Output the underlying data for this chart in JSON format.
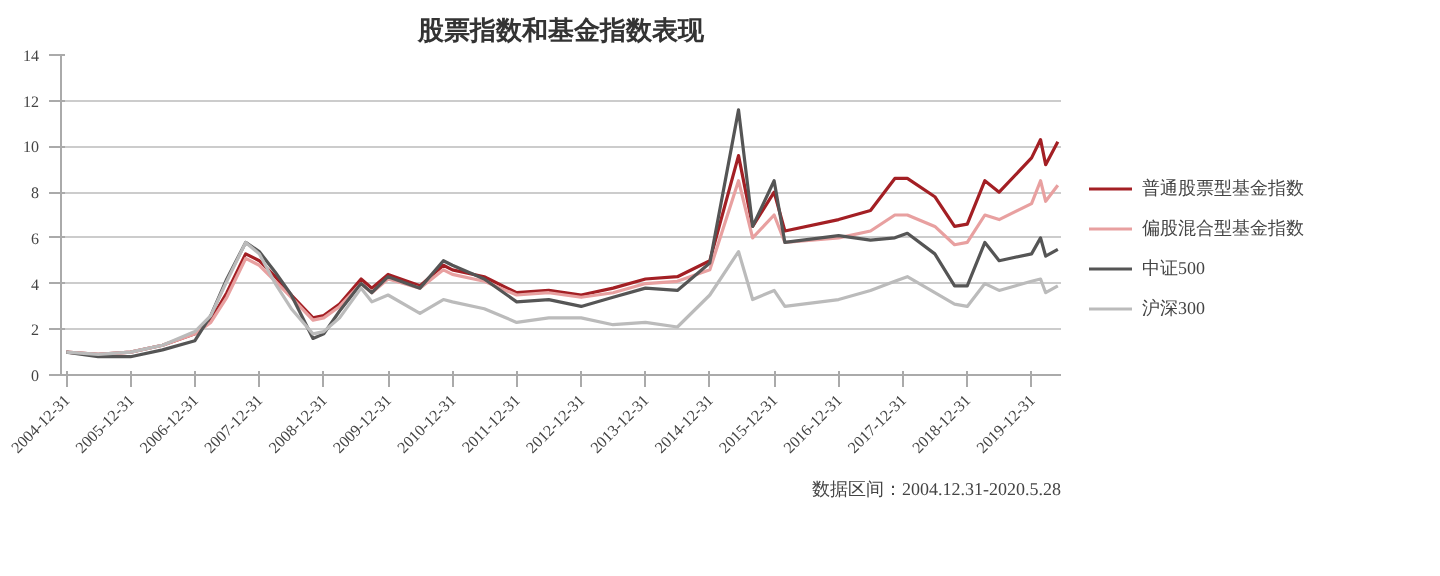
{
  "chart_data": {
    "type": "line",
    "title": "股票指数和基金指数表现",
    "x": [
      "2004-12-31",
      "2005-06-30",
      "2005-12-31",
      "2006-06-30",
      "2006-12-31",
      "2007-03-31",
      "2007-06-30",
      "2007-10-15",
      "2007-12-31",
      "2008-03-31",
      "2008-06-30",
      "2008-10-31",
      "2008-12-31",
      "2009-03-31",
      "2009-07-31",
      "2009-09-30",
      "2009-12-31",
      "2010-06-30",
      "2010-11-10",
      "2010-12-31",
      "2011-06-30",
      "2011-12-31",
      "2012-06-30",
      "2012-12-31",
      "2013-06-30",
      "2013-12-31",
      "2014-06-30",
      "2014-12-31",
      "2015-06-12",
      "2015-08-31",
      "2015-12-31",
      "2016-03-01",
      "2016-12-31",
      "2017-06-30",
      "2017-11-15",
      "2018-01-25",
      "2018-06-30",
      "2018-10-20",
      "2018-12-31",
      "2019-04-10",
      "2019-06-30",
      "2019-12-31",
      "2020-02-20",
      "2020-03-20",
      "2020-05-28"
    ],
    "series": [
      {
        "name": "普通股票型基金指数",
        "color": "#a31f24",
        "values": [
          1.0,
          0.9,
          1.0,
          1.3,
          1.8,
          2.4,
          3.6,
          5.3,
          5.0,
          4.3,
          3.5,
          2.5,
          2.6,
          3.1,
          4.2,
          3.8,
          4.4,
          3.9,
          4.8,
          4.6,
          4.3,
          3.6,
          3.7,
          3.5,
          3.8,
          4.2,
          4.3,
          5.0,
          9.6,
          6.5,
          8.0,
          6.3,
          6.8,
          7.2,
          8.6,
          8.6,
          7.8,
          6.5,
          6.6,
          8.5,
          8.0,
          9.5,
          10.3,
          9.2,
          10.2
        ]
      },
      {
        "name": "偏股混合型基金指数",
        "color": "#e8a0a0",
        "values": [
          1.0,
          0.9,
          1.0,
          1.3,
          1.8,
          2.3,
          3.4,
          5.1,
          4.8,
          4.1,
          3.4,
          2.4,
          2.5,
          3.0,
          4.0,
          3.6,
          4.2,
          3.8,
          4.6,
          4.4,
          4.1,
          3.5,
          3.6,
          3.4,
          3.6,
          4.0,
          4.1,
          4.6,
          8.5,
          6.0,
          7.0,
          5.8,
          6.0,
          6.3,
          7.0,
          7.0,
          6.5,
          5.7,
          5.8,
          7.0,
          6.8,
          7.5,
          8.5,
          7.6,
          8.3
        ]
      },
      {
        "name": "中证500",
        "color": "#555555",
        "values": [
          1.0,
          0.8,
          0.8,
          1.1,
          1.5,
          2.6,
          4.2,
          5.8,
          5.4,
          4.5,
          3.5,
          1.6,
          1.8,
          2.8,
          4.0,
          3.6,
          4.3,
          3.8,
          5.0,
          4.8,
          4.2,
          3.2,
          3.3,
          3.0,
          3.4,
          3.8,
          3.7,
          4.9,
          11.6,
          6.5,
          8.5,
          5.8,
          6.1,
          5.9,
          6.0,
          6.2,
          5.3,
          3.9,
          3.9,
          5.8,
          5.0,
          5.3,
          6.0,
          5.2,
          5.5
        ]
      },
      {
        "name": "沪深300",
        "color": "#bbbbbb",
        "values": [
          1.0,
          0.9,
          1.0,
          1.3,
          1.9,
          2.6,
          4.1,
          5.8,
          5.3,
          4.0,
          2.9,
          1.8,
          1.9,
          2.5,
          3.8,
          3.2,
          3.5,
          2.7,
          3.3,
          3.2,
          2.9,
          2.3,
          2.5,
          2.5,
          2.2,
          2.3,
          2.1,
          3.5,
          5.4,
          3.3,
          3.7,
          3.0,
          3.3,
          3.7,
          4.1,
          4.3,
          3.6,
          3.1,
          3.0,
          4.0,
          3.7,
          4.1,
          4.2,
          3.6,
          3.9
        ]
      }
    ],
    "xlim": [
      "2004-12-01",
      "2020-06-15"
    ],
    "xticks": [
      "2004-12-31",
      "2005-12-31",
      "2006-12-31",
      "2007-12-31",
      "2008-12-31",
      "2009-12-31",
      "2010-12-31",
      "2011-12-31",
      "2012-12-31",
      "2013-12-31",
      "2014-12-31",
      "2015-12-31",
      "2016-12-31",
      "2017-12-31",
      "2018-12-31",
      "2019-12-31"
    ],
    "ylim": [
      0,
      14
    ],
    "yticks": [
      0,
      2,
      4,
      6,
      8,
      10,
      12,
      14
    ],
    "grid": "y",
    "legend": "right",
    "marker": "none",
    "line_style": "solid",
    "annotations": [
      "数据区间：2004.12.31-2020.5.28"
    ]
  }
}
